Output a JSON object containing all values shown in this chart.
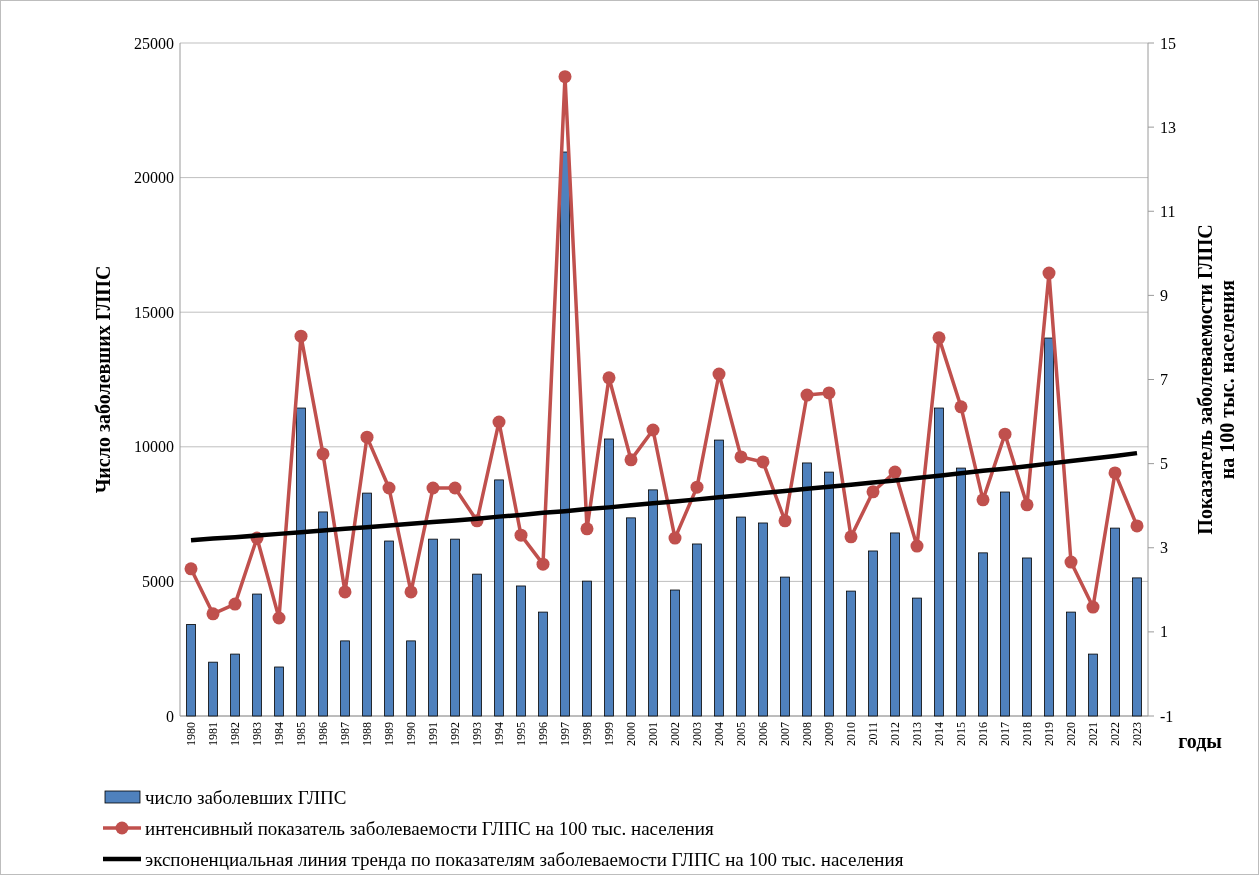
{
  "chart_data": {
    "type": "bar",
    "categories": [
      "1980",
      "1981",
      "1982",
      "1983",
      "1984",
      "1985",
      "1986",
      "1987",
      "1988",
      "1989",
      "1990",
      "1991",
      "1992",
      "1993",
      "1994",
      "1995",
      "1996",
      "1997",
      "1998",
      "1999",
      "2000",
      "2001",
      "2002",
      "2003",
      "2004",
      "2005",
      "2006",
      "2007",
      "2008",
      "2009",
      "2010",
      "2011",
      "2012",
      "2013",
      "2014",
      "2015",
      "2016",
      "2017",
      "2018",
      "2019",
      "2020",
      "2021",
      "2022",
      "2023"
    ],
    "series": [
      {
        "name": "число заболевших ГЛПС",
        "color": "#4f81bd",
        "values": [
          3400,
          2000,
          2300,
          4530,
          1820,
          11440,
          7580,
          2790,
          8280,
          6500,
          2790,
          6570,
          6570,
          5270,
          8770,
          4830,
          3860,
          20950,
          5010,
          10290,
          7360,
          8400,
          4680,
          6390,
          10250,
          7390,
          7170,
          5160,
          9400,
          9060,
          4640,
          6130,
          6800,
          4380,
          11440,
          9210,
          6060,
          8320,
          5870,
          14040,
          3860,
          2300,
          6980,
          5130
        ]
      },
      {
        "name": "интенсивный показатель заболеваемости ГЛПС на 100 тыс. населения",
        "type": "line",
        "axis": "y2",
        "marker": "circle",
        "color": "#c0504d",
        "values": [
          2.5,
          1.43,
          1.66,
          3.23,
          1.33,
          8.03,
          5.23,
          1.95,
          5.63,
          4.42,
          1.95,
          4.42,
          4.42,
          3.64,
          5.99,
          3.3,
          2.61,
          14.2,
          3.45,
          7.04,
          5.09,
          5.8,
          3.23,
          4.44,
          7.13,
          5.16,
          5.04,
          3.64,
          6.63,
          6.68,
          3.26,
          4.33,
          4.8,
          3.04,
          7.99,
          6.35,
          4.14,
          5.7,
          4.02,
          9.53,
          2.66,
          1.59,
          4.78,
          3.52
        ]
      },
      {
        "name": "экспоненциальная  линия тренда по показателям заболеваемости ГЛПС на 100 тыс. населения",
        "type": "line",
        "axis": "y2",
        "marker": "none",
        "color": "#000000",
        "values": [
          3.18,
          3.22,
          3.25,
          3.29,
          3.33,
          3.37,
          3.41,
          3.45,
          3.49,
          3.53,
          3.57,
          3.61,
          3.65,
          3.69,
          3.74,
          3.78,
          3.83,
          3.87,
          3.92,
          3.96,
          4.01,
          4.06,
          4.1,
          4.15,
          4.2,
          4.25,
          4.3,
          4.35,
          4.4,
          4.45,
          4.5,
          4.55,
          4.6,
          4.66,
          4.71,
          4.77,
          4.83,
          4.88,
          4.94,
          5,
          5.06,
          5.12,
          5.18,
          5.25
        ]
      }
    ],
    "ylabel": "Число заболевших ГЛПС",
    "y2label": "Показатель  заболеваемости  ГЛПС\nна 100 тыс. населения",
    "xlabel": "годы",
    "ylim": [
      0,
      25000
    ],
    "yticks": [
      0,
      5000,
      10000,
      15000,
      20000,
      25000
    ],
    "y2lim": [
      -1,
      15
    ],
    "y2ticks": [
      -1,
      1,
      3,
      5,
      7,
      9,
      11,
      13,
      15
    ],
    "grid": "y",
    "legend": "bottom"
  }
}
